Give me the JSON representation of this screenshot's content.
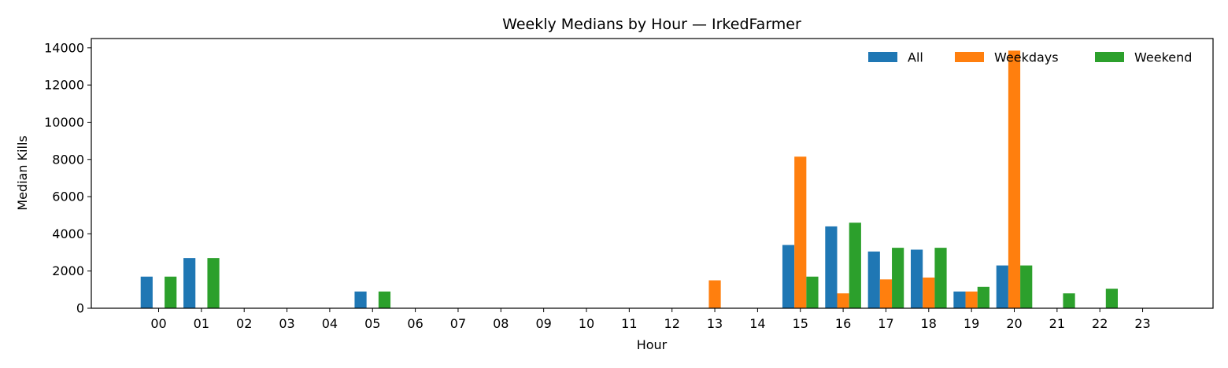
{
  "chart_data": {
    "type": "bar",
    "title": "Weekly Medians by Hour — IrkedFarmer",
    "xlabel": "Hour",
    "ylabel": "Median Kills",
    "ylim": [
      0,
      14500
    ],
    "yticks": [
      0,
      2000,
      4000,
      6000,
      8000,
      10000,
      12000,
      14000
    ],
    "categories": [
      "00",
      "01",
      "02",
      "03",
      "04",
      "05",
      "06",
      "07",
      "08",
      "09",
      "10",
      "11",
      "12",
      "13",
      "14",
      "15",
      "16",
      "17",
      "18",
      "19",
      "20",
      "21",
      "22",
      "23"
    ],
    "legend_position": "top-right",
    "grid": false,
    "series": [
      {
        "name": "All",
        "color": "#1f77b4",
        "values": [
          1700,
          2700,
          0,
          0,
          0,
          900,
          0,
          0,
          0,
          0,
          0,
          0,
          0,
          0,
          0,
          3400,
          4400,
          3050,
          3150,
          900,
          2300,
          0,
          0,
          0
        ]
      },
      {
        "name": "Weekdays",
        "color": "#ff7f0e",
        "values": [
          0,
          0,
          0,
          0,
          0,
          0,
          0,
          0,
          0,
          0,
          0,
          0,
          0,
          1500,
          0,
          8150,
          800,
          1550,
          1650,
          900,
          13850,
          0,
          0,
          0
        ]
      },
      {
        "name": "Weekend",
        "color": "#2ca02c",
        "values": [
          1700,
          2700,
          0,
          0,
          0,
          900,
          0,
          0,
          0,
          0,
          0,
          0,
          0,
          0,
          0,
          1700,
          4600,
          3250,
          3250,
          1150,
          2300,
          800,
          1050,
          0
        ]
      }
    ]
  }
}
